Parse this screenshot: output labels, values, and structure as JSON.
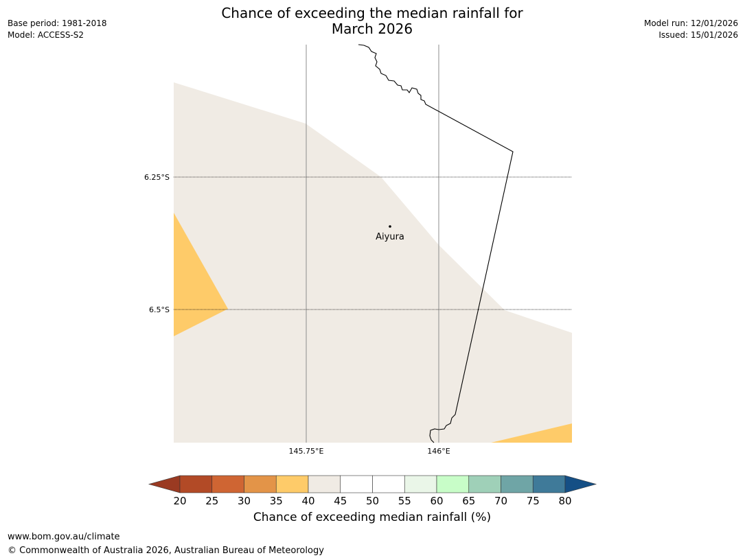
{
  "title": {
    "line1": "Chance of exceeding the median rainfall for",
    "line2": "March 2026"
  },
  "meta": {
    "base_period": "Base period: 1981-2018",
    "model": "Model: ACCESS-S2",
    "model_run": "Model run: 12/01/2026",
    "issued": "Issued: 15/01/2026"
  },
  "map": {
    "lat_labels": [
      "6.25°S",
      "6.5°S"
    ],
    "lon_labels": [
      "145.75°E",
      "146°E"
    ],
    "place_name": "Aiyura"
  },
  "colorbar": {
    "label": "Chance of exceeding median rainfall (%)",
    "ticks": [
      "20",
      "25",
      "30",
      "35",
      "40",
      "45",
      "50",
      "55",
      "60",
      "65",
      "70",
      "75",
      "80"
    ],
    "low_extend_color": "#9a3a22",
    "high_extend_color": "#154f85",
    "bins": [
      {
        "range": "20-25",
        "color": "#b24a26"
      },
      {
        "range": "25-30",
        "color": "#cf6533"
      },
      {
        "range": "30-35",
        "color": "#e39448"
      },
      {
        "range": "35-40",
        "color": "#fecb69"
      },
      {
        "range": "40-45",
        "color": "#f0ebe4"
      },
      {
        "range": "45-50",
        "color": "#ffffff"
      },
      {
        "range": "50-55",
        "color": "#ffffff"
      },
      {
        "range": "55-60",
        "color": "#eaf6e8"
      },
      {
        "range": "60-65",
        "color": "#c8fdc8"
      },
      {
        "range": "65-70",
        "color": "#9fd0b8"
      },
      {
        "range": "70-75",
        "color": "#6fa5a6"
      },
      {
        "range": "75-80",
        "color": "#3f7a99"
      }
    ]
  },
  "footer": {
    "url": "www.bom.gov.au/climate",
    "copyright": "© Commonwealth of Australia 2026, Australian Bureau of Meteorology"
  }
}
